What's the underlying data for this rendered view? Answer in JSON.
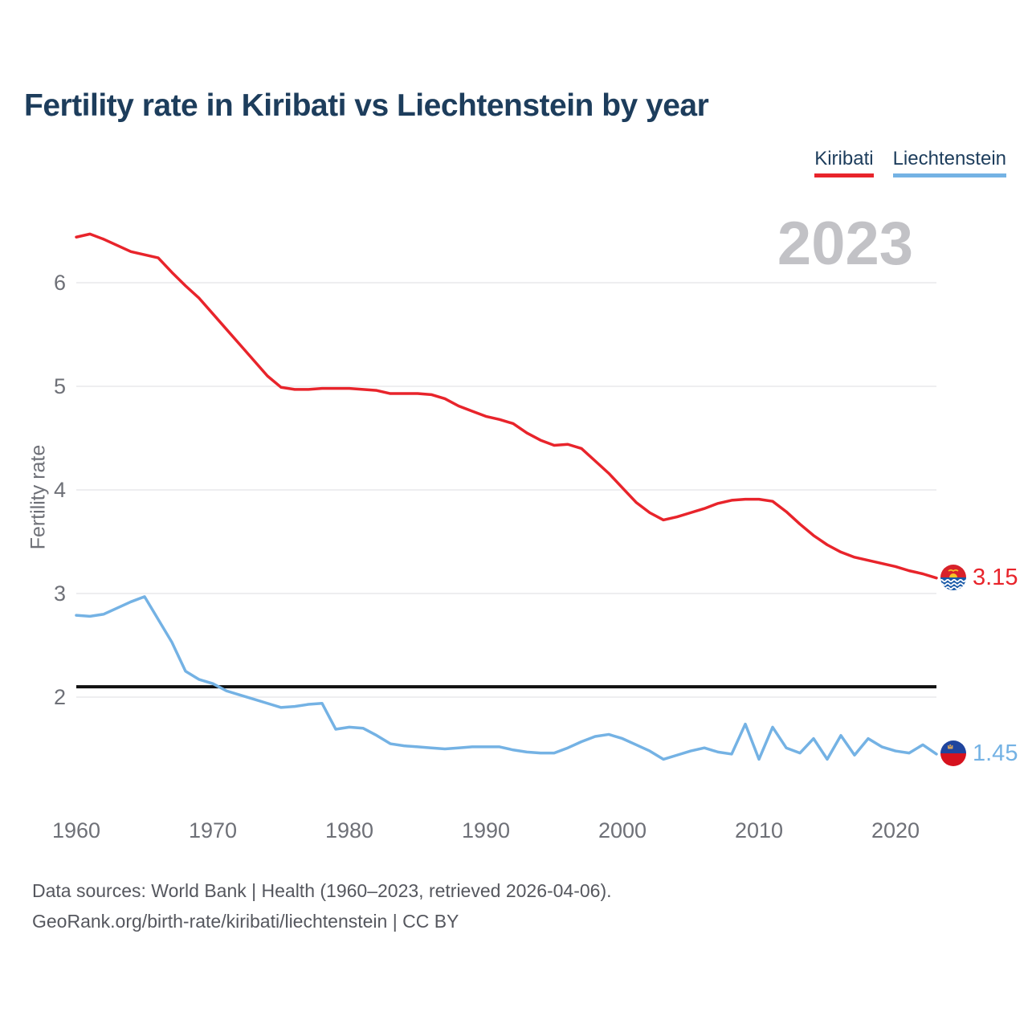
{
  "page": {
    "title": "Fertility rate in Kiribati vs Liechtenstein by year",
    "watermark": "2023"
  },
  "legend": {
    "items": [
      {
        "label": "Kiribati",
        "color": "#e8242b"
      },
      {
        "label": "Liechtenstein",
        "color": "#74b2e4"
      }
    ]
  },
  "y_axis_label": "Fertility rate",
  "end_labels": {
    "kiribati": "3.15",
    "liechtenstein": "1.45"
  },
  "footer": {
    "line1": "Data sources: World Bank | Health (1960–2023, retrieved 2026-04-06).",
    "line2": "GeoRank.org/birth-rate/kiribati/liechtenstein | CC BY"
  },
  "colors": {
    "kiribati_line": "#e8242b",
    "liechtenstein_line": "#74b2e4",
    "title_text": "#1d3d5c",
    "axis_text": "#6e7077",
    "gridline": "#e9e9ec",
    "watermark_text": "#c2c2c6",
    "footer_text": "#55575e",
    "reference_line": "#111111"
  },
  "chart_data": {
    "type": "line",
    "title": "Fertility rate in Kiribati vs Liechtenstein by year",
    "xlabel": "",
    "ylabel": "Fertility rate",
    "grid": "horizontal",
    "legend_position": "top-right",
    "xlim": [
      1960,
      2023
    ],
    "ylim": [
      1.3,
      6.6
    ],
    "x_ticks": [
      1960,
      1970,
      1980,
      1990,
      2000,
      2010,
      2020
    ],
    "y_ticks": [
      2,
      3,
      4,
      5,
      6
    ],
    "reference_line": {
      "value": 2.1,
      "color": "#111111"
    },
    "watermark_year": "2023",
    "end_value_labels": {
      "Kiribati": 3.15,
      "Liechtenstein": 1.45
    },
    "x": [
      1960,
      1961,
      1962,
      1963,
      1964,
      1965,
      1966,
      1967,
      1968,
      1969,
      1970,
      1971,
      1972,
      1973,
      1974,
      1975,
      1976,
      1977,
      1978,
      1979,
      1980,
      1981,
      1982,
      1983,
      1984,
      1985,
      1986,
      1987,
      1988,
      1989,
      1990,
      1991,
      1992,
      1993,
      1994,
      1995,
      1996,
      1997,
      1998,
      1999,
      2000,
      2001,
      2002,
      2003,
      2004,
      2005,
      2006,
      2007,
      2008,
      2009,
      2010,
      2011,
      2012,
      2013,
      2014,
      2015,
      2016,
      2017,
      2018,
      2019,
      2020,
      2021,
      2022,
      2023
    ],
    "series": [
      {
        "name": "Kiribati",
        "color": "#e8242b",
        "values": [
          6.44,
          6.47,
          6.42,
          6.36,
          6.3,
          6.27,
          6.24,
          6.1,
          5.97,
          5.85,
          5.7,
          5.55,
          5.4,
          5.25,
          5.1,
          4.99,
          4.97,
          4.97,
          4.98,
          4.98,
          4.98,
          4.97,
          4.96,
          4.93,
          4.93,
          4.93,
          4.92,
          4.88,
          4.81,
          4.76,
          4.71,
          4.68,
          4.64,
          4.55,
          4.48,
          4.43,
          4.44,
          4.4,
          4.28,
          4.16,
          4.02,
          3.88,
          3.78,
          3.71,
          3.74,
          3.78,
          3.82,
          3.87,
          3.9,
          3.91,
          3.91,
          3.89,
          3.79,
          3.67,
          3.56,
          3.47,
          3.4,
          3.35,
          3.32,
          3.29,
          3.26,
          3.22,
          3.19,
          3.15
        ]
      },
      {
        "name": "Liechtenstein",
        "color": "#74b2e4",
        "values": [
          2.79,
          2.78,
          2.8,
          2.86,
          2.92,
          2.97,
          2.75,
          2.53,
          2.25,
          2.17,
          2.13,
          2.06,
          2.02,
          1.98,
          1.94,
          1.9,
          1.91,
          1.93,
          1.94,
          1.69,
          1.71,
          1.7,
          1.63,
          1.55,
          1.53,
          1.52,
          1.51,
          1.5,
          1.51,
          1.52,
          1.52,
          1.52,
          1.49,
          1.47,
          1.46,
          1.46,
          1.51,
          1.57,
          1.62,
          1.64,
          1.6,
          1.54,
          1.48,
          1.4,
          1.44,
          1.48,
          1.51,
          1.47,
          1.45,
          1.74,
          1.4,
          1.71,
          1.51,
          1.46,
          1.6,
          1.4,
          1.63,
          1.44,
          1.6,
          1.52,
          1.48,
          1.46,
          1.54,
          1.45
        ]
      }
    ]
  }
}
